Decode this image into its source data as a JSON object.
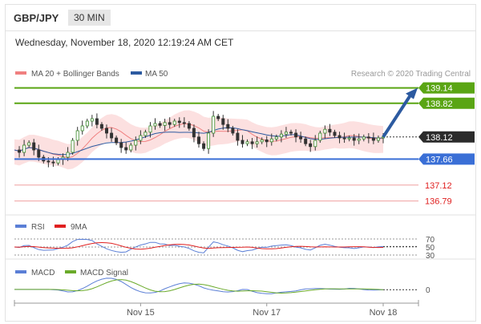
{
  "header": {
    "pair": "GBP/JPY",
    "timeframe": "30 MIN"
  },
  "timestamp": "Wednesday, November 18, 2020 12:19:24 AM CET",
  "legend": {
    "ma20_bb": "MA 20 + Bollinger Bands",
    "ma50": "MA 50",
    "credit": "Research © 2020 Trading Central",
    "colors": {
      "ma20": "#f08080",
      "ma50": "#2c5aa0",
      "band_fill": "#fce0e0"
    }
  },
  "rsi_legend": {
    "rsi": "RSI",
    "ma": "9MA",
    "colors": {
      "rsi": "#5b7fd6",
      "ma": "#e02020"
    }
  },
  "macd_legend": {
    "macd": "MACD",
    "signal": "MACD Signal",
    "colors": {
      "macd": "#5b7fd6",
      "signal": "#6aaa2a"
    }
  },
  "chart_data": {
    "type": "candlestick",
    "y_range": [
      136.6,
      139.3
    ],
    "x_ticks": [
      "Nov 15",
      "Nov 17",
      "Nov 18"
    ],
    "current_price": "138.12",
    "levels": [
      {
        "value": 139.14,
        "label": "139.14",
        "kind": "resistance",
        "color": "#5aa514"
      },
      {
        "value": 138.82,
        "label": "138.82",
        "kind": "resistance",
        "color": "#5aa514"
      },
      {
        "value": 137.66,
        "label": "137.66",
        "kind": "pivot",
        "color": "#3a6fd6"
      },
      {
        "value": 137.12,
        "label": "137.12",
        "kind": "support",
        "color": "#e02020"
      },
      {
        "value": 136.79,
        "label": "136.79",
        "kind": "support",
        "color": "#e02020"
      }
    ],
    "forecast_arrow": {
      "from": 138.12,
      "to": 139.14,
      "color": "#2c5aa0"
    },
    "closes": [
      137.85,
      137.8,
      137.95,
      138.0,
      137.85,
      137.7,
      137.62,
      137.6,
      137.58,
      137.65,
      137.7,
      137.8,
      138.05,
      138.25,
      138.35,
      138.45,
      138.5,
      138.38,
      138.3,
      138.2,
      138.1,
      138.0,
      137.9,
      137.85,
      137.95,
      138.05,
      138.15,
      138.22,
      138.35,
      138.4,
      138.36,
      138.42,
      138.38,
      138.45,
      138.42,
      138.4,
      138.3,
      138.12,
      137.98,
      137.88,
      138.2,
      138.55,
      138.5,
      138.38,
      138.3,
      138.2,
      138.05,
      137.98,
      138.02,
      137.98,
      138.02,
      138.06,
      138.02,
      138.08,
      138.12,
      138.18,
      138.22,
      138.2,
      138.12,
      138.08,
      137.98,
      137.92,
      138.05,
      138.2,
      138.28,
      138.22,
      138.15,
      138.1,
      138.08,
      138.1,
      138.05,
      138.08,
      138.12,
      138.1,
      138.05,
      138.1,
      138.12
    ],
    "rsi": {
      "ticks": [
        "70",
        "50",
        "30"
      ],
      "range": [
        30,
        70
      ]
    },
    "macd": {
      "ticks": [
        "0"
      ],
      "range": [
        -0.3,
        0.4
      ]
    }
  }
}
